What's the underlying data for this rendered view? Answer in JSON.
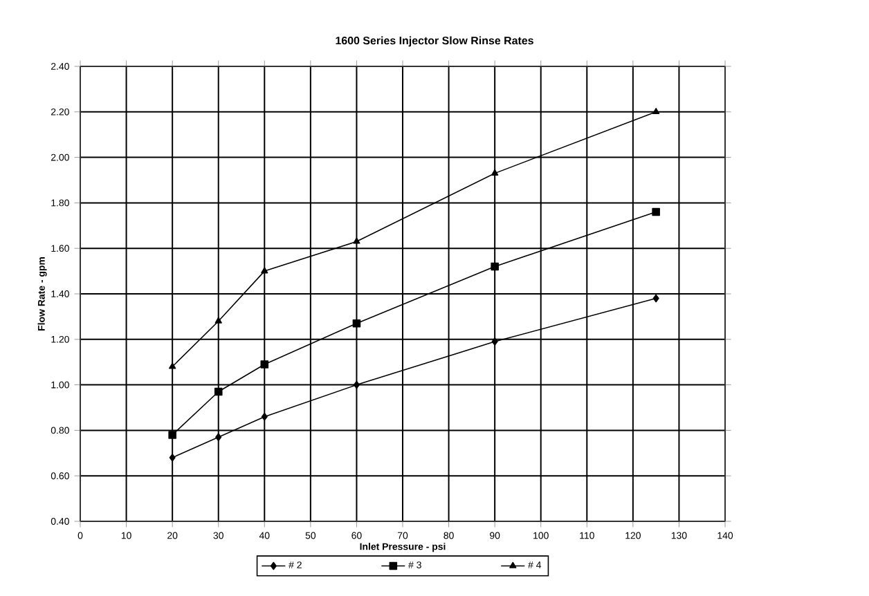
{
  "chart_data": {
    "type": "line",
    "title": "1600 Series Injector Slow Rinse Rates",
    "xlabel": "Inlet Pressure - psi",
    "ylabel": "Flow Rate - gpm",
    "x": [
      20,
      30,
      40,
      60,
      90,
      125
    ],
    "series": [
      {
        "name": "# 2",
        "color": "#000000",
        "marker": "diamond",
        "values": [
          0.68,
          0.77,
          0.86,
          1.0,
          1.19,
          1.38
        ]
      },
      {
        "name": "# 3",
        "color": "#000000",
        "marker": "square",
        "values": [
          0.78,
          0.97,
          1.09,
          1.27,
          1.52,
          1.76
        ]
      },
      {
        "name": "# 4",
        "color": "#000000",
        "marker": "triangle",
        "values": [
          1.08,
          1.28,
          1.5,
          1.63,
          1.93,
          2.2
        ]
      }
    ],
    "xlim": [
      0,
      140
    ],
    "xticks": [
      0,
      10,
      20,
      30,
      40,
      50,
      60,
      70,
      80,
      90,
      100,
      110,
      120,
      130,
      140
    ],
    "ylim": [
      0.4,
      2.4
    ],
    "yticks": [
      {
        "value": 0.4,
        "label": "0.40"
      },
      {
        "value": 0.6,
        "label": "0.60"
      },
      {
        "value": 0.8,
        "label": "0.80"
      },
      {
        "value": 1.0,
        "label": "1.00"
      },
      {
        "value": 1.2,
        "label": "1.20"
      },
      {
        "value": 1.4,
        "label": "1.40"
      },
      {
        "value": 1.6,
        "label": "1.60"
      },
      {
        "value": 1.8,
        "label": "1.80"
      },
      {
        "value": 2.0,
        "label": "2.00"
      },
      {
        "value": 2.2,
        "label": "2.20"
      },
      {
        "value": 2.4,
        "label": "2.40"
      }
    ],
    "grid": true,
    "legend": "bottom",
    "line_style": "solid"
  }
}
